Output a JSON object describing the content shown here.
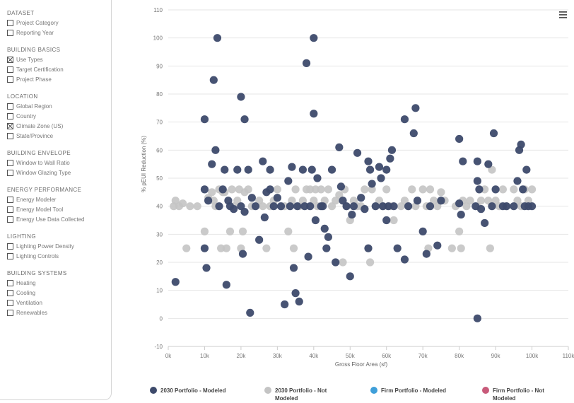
{
  "sidebar": {
    "groups": [
      {
        "title": "DATASET",
        "options": [
          {
            "label": "Project Category",
            "checked": false
          },
          {
            "label": "Reporting Year",
            "checked": false
          }
        ]
      },
      {
        "title": "BUILDING BASICS",
        "options": [
          {
            "label": "Use Types",
            "checked": true
          },
          {
            "label": "Target Certification",
            "checked": false
          },
          {
            "label": "Project Phase",
            "checked": false
          }
        ]
      },
      {
        "title": "LOCATION",
        "options": [
          {
            "label": "Global Region",
            "checked": false
          },
          {
            "label": "Country",
            "checked": false
          },
          {
            "label": "Climate Zone (US)",
            "checked": true
          },
          {
            "label": "State/Province",
            "checked": false
          }
        ]
      },
      {
        "title": "BUILDING ENVELOPE",
        "options": [
          {
            "label": "Window to Wall Ratio",
            "checked": false
          },
          {
            "label": "Window Glazing Type",
            "checked": false
          }
        ]
      },
      {
        "title": "ENERGY PERFORMANCE",
        "options": [
          {
            "label": "Energy Modeler",
            "checked": false
          },
          {
            "label": "Energy Model Tool",
            "checked": false
          },
          {
            "label": "Energy Use Data Collected",
            "checked": false
          }
        ]
      },
      {
        "title": "LIGHTING",
        "options": [
          {
            "label": "Lighting Power Density",
            "checked": false
          },
          {
            "label": "Lighting Controls",
            "checked": false
          }
        ]
      },
      {
        "title": "BUILDING SYSTEMS",
        "options": [
          {
            "label": "Heating",
            "checked": false
          },
          {
            "label": "Cooling",
            "checked": false
          },
          {
            "label": "Ventilation",
            "checked": false
          },
          {
            "label": "Renewables",
            "checked": false
          }
        ]
      }
    ]
  },
  "menu_icon": "hamburger-menu-icon",
  "chart_data": {
    "type": "scatter",
    "xlabel": "Gross Floor Area (sf)",
    "ylabel": "% pEUI Reduction (%)",
    "xlim": [
      0,
      110000
    ],
    "ylim": [
      -10,
      110
    ],
    "x_tick_labels": [
      "0k",
      "10k",
      "20k",
      "30k",
      "40k",
      "50k",
      "60k",
      "70k",
      "80k",
      "90k",
      "100k",
      "110k"
    ],
    "y_tick_labels": [
      "-10",
      "0",
      "10",
      "20",
      "30",
      "40",
      "50",
      "60",
      "70",
      "80",
      "90",
      "100",
      "110"
    ],
    "grid": "horizontal",
    "legend_position": "bottom",
    "series": [
      {
        "name": "2030 Portfolio - Modeled",
        "color": "#3d4a6b",
        "points": [
          [
            2000,
            13
          ],
          [
            10000,
            71
          ],
          [
            10000,
            46
          ],
          [
            10000,
            25
          ],
          [
            10500,
            18
          ],
          [
            11000,
            42
          ],
          [
            12000,
            55
          ],
          [
            12500,
            85
          ],
          [
            13000,
            60
          ],
          [
            13500,
            100
          ],
          [
            14000,
            40
          ],
          [
            15000,
            46
          ],
          [
            15500,
            53
          ],
          [
            16000,
            12
          ],
          [
            16500,
            42
          ],
          [
            17000,
            40
          ],
          [
            18000,
            39
          ],
          [
            19000,
            53
          ],
          [
            20000,
            79
          ],
          [
            20000,
            40
          ],
          [
            20500,
            23
          ],
          [
            21000,
            71
          ],
          [
            21000,
            38
          ],
          [
            22000,
            53
          ],
          [
            22500,
            2
          ],
          [
            23000,
            43
          ],
          [
            24000,
            40
          ],
          [
            25000,
            28
          ],
          [
            26000,
            56
          ],
          [
            26500,
            36
          ],
          [
            27000,
            45
          ],
          [
            28000,
            53
          ],
          [
            28000,
            46
          ],
          [
            29000,
            40
          ],
          [
            30000,
            43
          ],
          [
            31000,
            40
          ],
          [
            32000,
            5
          ],
          [
            33000,
            49
          ],
          [
            33500,
            40
          ],
          [
            34000,
            54
          ],
          [
            34500,
            18
          ],
          [
            35000,
            9
          ],
          [
            35500,
            40
          ],
          [
            36000,
            6
          ],
          [
            37000,
            53
          ],
          [
            37500,
            40
          ],
          [
            38000,
            91
          ],
          [
            38500,
            22
          ],
          [
            39000,
            40
          ],
          [
            39500,
            53
          ],
          [
            40000,
            100
          ],
          [
            40000,
            73
          ],
          [
            40500,
            35
          ],
          [
            41000,
            50
          ],
          [
            42000,
            40
          ],
          [
            42500,
            40
          ],
          [
            43000,
            32
          ],
          [
            43500,
            25
          ],
          [
            44000,
            29
          ],
          [
            45000,
            53
          ],
          [
            46000,
            20
          ],
          [
            47000,
            61
          ],
          [
            47500,
            47
          ],
          [
            48000,
            42
          ],
          [
            49000,
            40
          ],
          [
            50000,
            15
          ],
          [
            50500,
            37
          ],
          [
            51000,
            40
          ],
          [
            52000,
            59
          ],
          [
            53000,
            43
          ],
          [
            54000,
            39
          ],
          [
            55000,
            56
          ],
          [
            55000,
            25
          ],
          [
            55500,
            53
          ],
          [
            56000,
            48
          ],
          [
            57000,
            40
          ],
          [
            58000,
            54
          ],
          [
            58500,
            50
          ],
          [
            59000,
            40
          ],
          [
            60000,
            53
          ],
          [
            60000,
            35
          ],
          [
            60500,
            40
          ],
          [
            61000,
            57
          ],
          [
            61500,
            60
          ],
          [
            62000,
            40
          ],
          [
            63000,
            25
          ],
          [
            65000,
            21
          ],
          [
            65000,
            71
          ],
          [
            66000,
            40
          ],
          [
            67500,
            66
          ],
          [
            68000,
            75
          ],
          [
            68500,
            42
          ],
          [
            70000,
            31
          ],
          [
            71000,
            23
          ],
          [
            72000,
            40
          ],
          [
            74000,
            26
          ],
          [
            75000,
            42
          ],
          [
            80000,
            64
          ],
          [
            80000,
            41
          ],
          [
            80500,
            37
          ],
          [
            81000,
            56
          ],
          [
            84500,
            40
          ],
          [
            85000,
            56
          ],
          [
            85000,
            49
          ],
          [
            85000,
            0
          ],
          [
            85500,
            46
          ],
          [
            86000,
            39
          ],
          [
            87000,
            34
          ],
          [
            88000,
            55
          ],
          [
            89000,
            40
          ],
          [
            89500,
            66
          ],
          [
            90000,
            46
          ],
          [
            92000,
            40
          ],
          [
            93000,
            40
          ],
          [
            95000,
            40
          ],
          [
            96000,
            49
          ],
          [
            96500,
            60
          ],
          [
            97000,
            62
          ],
          [
            97500,
            46
          ],
          [
            98000,
            40
          ],
          [
            98500,
            53
          ],
          [
            99000,
            40
          ],
          [
            100000,
            40
          ]
        ]
      },
      {
        "name": "2030 Portfolio - Not Modeled",
        "color": "#c4c4c4",
        "points": [
          [
            1500,
            40
          ],
          [
            2000,
            42
          ],
          [
            3000,
            40
          ],
          [
            4000,
            41
          ],
          [
            5000,
            25
          ],
          [
            6000,
            40
          ],
          [
            8000,
            40
          ],
          [
            10000,
            31
          ],
          [
            11000,
            43
          ],
          [
            12000,
            45
          ],
          [
            12500,
            42
          ],
          [
            13000,
            40
          ],
          [
            14000,
            46
          ],
          [
            14500,
            25
          ],
          [
            15000,
            45
          ],
          [
            15500,
            45
          ],
          [
            16000,
            25
          ],
          [
            17000,
            31
          ],
          [
            17500,
            46
          ],
          [
            18000,
            40
          ],
          [
            19000,
            42
          ],
          [
            19500,
            46
          ],
          [
            20000,
            25
          ],
          [
            20500,
            31
          ],
          [
            21000,
            45
          ],
          [
            22000,
            46
          ],
          [
            23000,
            40
          ],
          [
            25000,
            42
          ],
          [
            26000,
            40
          ],
          [
            27000,
            25
          ],
          [
            28000,
            40
          ],
          [
            29000,
            42
          ],
          [
            30000,
            46
          ],
          [
            31000,
            40
          ],
          [
            32000,
            40
          ],
          [
            33000,
            31
          ],
          [
            34000,
            42
          ],
          [
            34500,
            25
          ],
          [
            35000,
            46
          ],
          [
            36000,
            40
          ],
          [
            37000,
            42
          ],
          [
            38000,
            46
          ],
          [
            39000,
            46
          ],
          [
            40000,
            42
          ],
          [
            40500,
            46
          ],
          [
            41000,
            40
          ],
          [
            42000,
            46
          ],
          [
            43000,
            42
          ],
          [
            44000,
            46
          ],
          [
            45000,
            40
          ],
          [
            46000,
            42
          ],
          [
            47000,
            44
          ],
          [
            48000,
            20
          ],
          [
            48500,
            46
          ],
          [
            49000,
            40
          ],
          [
            50000,
            35
          ],
          [
            51000,
            42
          ],
          [
            52000,
            40
          ],
          [
            53000,
            40
          ],
          [
            54000,
            46
          ],
          [
            55000,
            25
          ],
          [
            55500,
            20
          ],
          [
            56000,
            46
          ],
          [
            57000,
            40
          ],
          [
            58000,
            42
          ],
          [
            59000,
            40
          ],
          [
            60000,
            46
          ],
          [
            61000,
            40
          ],
          [
            62000,
            35
          ],
          [
            64000,
            40
          ],
          [
            65000,
            42
          ],
          [
            66000,
            40
          ],
          [
            67000,
            46
          ],
          [
            68000,
            40
          ],
          [
            70000,
            46
          ],
          [
            71000,
            40
          ],
          [
            71500,
            25
          ],
          [
            72000,
            46
          ],
          [
            73000,
            42
          ],
          [
            74000,
            40
          ],
          [
            75000,
            45
          ],
          [
            76000,
            42
          ],
          [
            78000,
            25
          ],
          [
            79000,
            40
          ],
          [
            80000,
            31
          ],
          [
            80500,
            25
          ],
          [
            81000,
            42
          ],
          [
            82000,
            40
          ],
          [
            83000,
            42
          ],
          [
            85000,
            40
          ],
          [
            86000,
            42
          ],
          [
            87000,
            46
          ],
          [
            88000,
            42
          ],
          [
            88500,
            25
          ],
          [
            89000,
            53
          ],
          [
            90000,
            42
          ],
          [
            91000,
            40
          ],
          [
            92000,
            46
          ],
          [
            93000,
            40
          ],
          [
            95000,
            46
          ],
          [
            96000,
            42
          ],
          [
            97000,
            40
          ],
          [
            98000,
            46
          ],
          [
            99000,
            42
          ],
          [
            100000,
            46
          ]
        ]
      },
      {
        "name": "Firm Portfolio - Modeled",
        "color": "#3f9fd9",
        "points": []
      },
      {
        "name": "Firm Portfolio - Not Modeled",
        "color": "#c85a7a",
        "points": []
      }
    ]
  }
}
